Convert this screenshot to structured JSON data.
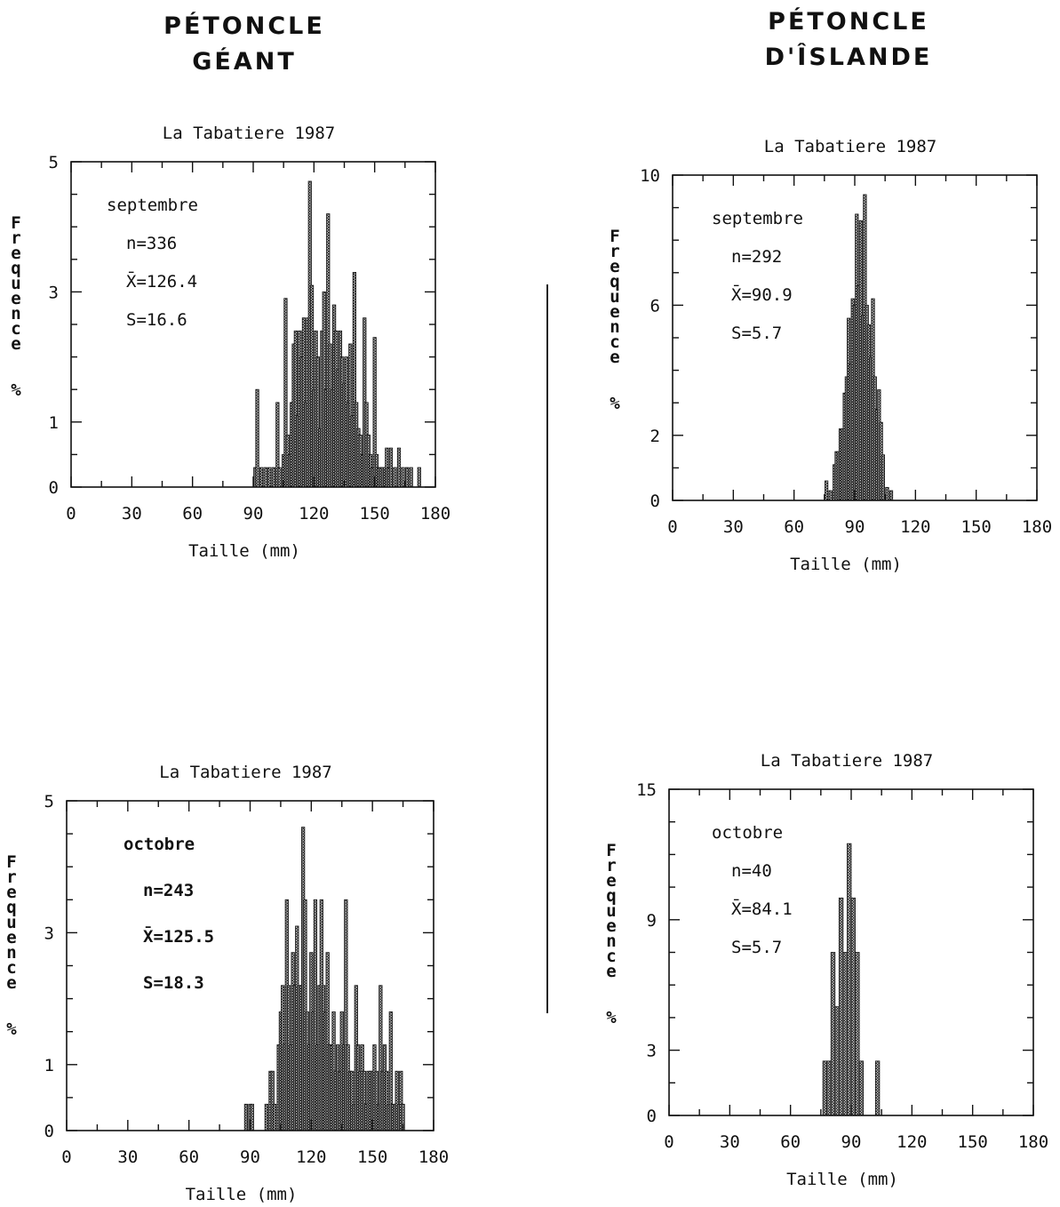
{
  "headings": {
    "left": [
      "PÉTONCLE",
      "GÉANT"
    ],
    "right": [
      "PÉTONCLE",
      "D'ÎSLANDE"
    ]
  },
  "chart_data": [
    {
      "type": "bar",
      "title": "La Tabatiere 1987",
      "xlabel": "Taille (mm)",
      "ylabel": "Frequence %",
      "xlim": [
        0,
        180
      ],
      "ylim": [
        0,
        5
      ],
      "xticks": [
        0,
        30,
        60,
        90,
        120,
        150,
        180
      ],
      "yticks": [
        0,
        1,
        3,
        5
      ],
      "annotations": [
        "septembre",
        "n=336",
        "X̄=126.4",
        "S=16.6"
      ],
      "bin_width": 1.5,
      "x": [
        91,
        92,
        94,
        96,
        98,
        100,
        102,
        103,
        105,
        106,
        107,
        108,
        109,
        110,
        111,
        112,
        113,
        114,
        115,
        116,
        117,
        118,
        119,
        120,
        121,
        122,
        123,
        124,
        125,
        126,
        127,
        128,
        129,
        130,
        131,
        132,
        133,
        134,
        135,
        136,
        137,
        138,
        139,
        140,
        141,
        142,
        143,
        144,
        145,
        146,
        147,
        148,
        149,
        150,
        151,
        152,
        153,
        154,
        155,
        156,
        157,
        158,
        160,
        162,
        164,
        166,
        168,
        172
      ],
      "values": [
        0.3,
        1.5,
        0.3,
        0.3,
        0.3,
        0.3,
        1.3,
        0.3,
        0.5,
        2.9,
        0.8,
        0.5,
        1.3,
        2.2,
        2.4,
        1.1,
        2.4,
        2.0,
        2.6,
        1.3,
        2.6,
        4.7,
        3.1,
        1.5,
        2.4,
        2.0,
        0.9,
        2.4,
        3.0,
        1.5,
        4.2,
        2.2,
        1.5,
        2.8,
        2.4,
        1.8,
        2.4,
        2.0,
        1.6,
        2.0,
        1.3,
        2.2,
        1.1,
        3.3,
        1.3,
        0.9,
        0.8,
        0.5,
        2.6,
        1.3,
        0.8,
        0.5,
        0.3,
        2.3,
        0.5,
        0.3,
        0.3,
        0.3,
        0.3,
        0.6,
        0.3,
        0.6,
        0.3,
        0.6,
        0.3,
        0.3,
        0.3,
        0.3
      ]
    },
    {
      "type": "bar",
      "title": "La Tabatiere 1987",
      "xlabel": "Taille (mm)",
      "ylabel": "Frequence %",
      "xlim": [
        0,
        180
      ],
      "ylim": [
        0,
        10
      ],
      "xticks": [
        0,
        30,
        60,
        90,
        120,
        150,
        180
      ],
      "yticks": [
        0,
        2,
        6,
        10
      ],
      "annotations": [
        "septembre",
        "n=292",
        "X̄=90.9",
        "S=5.7"
      ],
      "bin_width": 1.5,
      "x": [
        76,
        78,
        80,
        81,
        82,
        83,
        84,
        85,
        86,
        87,
        88,
        89,
        90,
        91,
        92,
        93,
        94,
        95,
        96,
        97,
        98,
        99,
        100,
        101,
        102,
        103,
        104,
        106,
        108
      ],
      "values": [
        0.6,
        0.3,
        1.1,
        1.5,
        1.5,
        2.2,
        2.2,
        3.3,
        3.8,
        5.6,
        4.2,
        6.2,
        6.0,
        8.8,
        6.6,
        8.6,
        5.7,
        9.4,
        6.0,
        5.4,
        4.4,
        6.2,
        3.8,
        2.8,
        3.4,
        2.4,
        1.4,
        0.4,
        0.3
      ]
    },
    {
      "type": "bar",
      "title": "La Tabatiere 1987",
      "xlabel": "Taille (mm)",
      "ylabel": "Frequence %",
      "xlim": [
        0,
        180
      ],
      "ylim": [
        0,
        5
      ],
      "xticks": [
        0,
        30,
        60,
        90,
        120,
        150,
        180
      ],
      "yticks": [
        0,
        1,
        3,
        5
      ],
      "annotations": [
        "octobre",
        "n=243",
        "X̄=125.5",
        "S=18.3"
      ],
      "bin_width": 1.5,
      "x": [
        88,
        90,
        91,
        98,
        100,
        101,
        102,
        104,
        105,
        106,
        107,
        108,
        109,
        110,
        111,
        112,
        113,
        114,
        115,
        116,
        117,
        118,
        119,
        120,
        121,
        122,
        123,
        124,
        125,
        126,
        127,
        128,
        129,
        130,
        131,
        132,
        133,
        134,
        135,
        136,
        137,
        138,
        139,
        140,
        141,
        142,
        143,
        144,
        145,
        146,
        147,
        148,
        149,
        150,
        151,
        152,
        153,
        154,
        155,
        156,
        157,
        158,
        159,
        160,
        161,
        162,
        163,
        164,
        165
      ],
      "values": [
        0.4,
        0.4,
        0.4,
        0.4,
        0.9,
        0.9,
        0.4,
        1.3,
        1.8,
        2.2,
        1.3,
        3.5,
        2.2,
        1.3,
        2.7,
        2.2,
        3.1,
        2.2,
        2.2,
        4.6,
        3.5,
        1.8,
        1.3,
        2.7,
        1.8,
        3.5,
        1.3,
        2.2,
        3.5,
        2.2,
        1.8,
        2.7,
        1.3,
        1.3,
        1.8,
        0.9,
        1.3,
        0.9,
        1.8,
        1.3,
        3.5,
        1.3,
        0.9,
        0.9,
        0.4,
        2.2,
        1.3,
        0.9,
        1.3,
        0.9,
        0.4,
        0.9,
        0.9,
        0.9,
        1.3,
        0.9,
        0.4,
        2.2,
        0.9,
        1.3,
        0.9,
        0.4,
        1.8,
        0.4,
        0.4,
        0.9,
        0.4,
        0.9,
        0.4
      ]
    },
    {
      "type": "bar",
      "title": "La Tabatiere 1987",
      "xlabel": "Taille (mm)",
      "ylabel": "Frequence %",
      "xlim": [
        0,
        180
      ],
      "ylim": [
        0,
        15
      ],
      "xticks": [
        0,
        30,
        60,
        90,
        120,
        150,
        180
      ],
      "yticks": [
        0,
        3,
        9,
        15
      ],
      "annotations": [
        "octobre",
        "n=40",
        "X̄=84.1",
        "S=5.7"
      ],
      "bin_width": 2,
      "x": [
        77,
        79,
        81,
        83,
        85,
        87,
        89,
        91,
        93,
        95,
        103
      ],
      "values": [
        2.5,
        2.5,
        7.5,
        5.0,
        10.0,
        7.5,
        12.5,
        10.0,
        7.5,
        2.5,
        2.5
      ]
    }
  ]
}
